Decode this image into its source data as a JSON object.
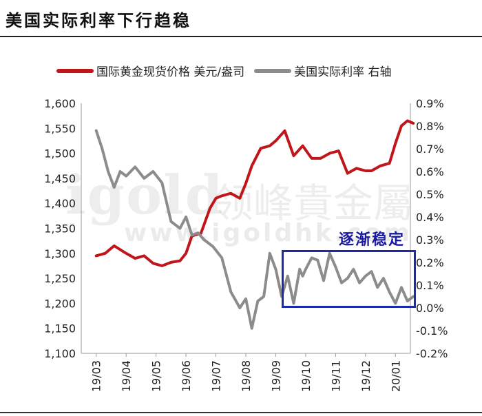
{
  "page": {
    "title": "美国实际利率下行趋稳"
  },
  "watermark": {
    "brand": "igold",
    "brand_cn": "领峰貴金屬",
    "url": "www.igoldhk.com"
  },
  "annotation": {
    "text": "逐渐稳定"
  },
  "chart_data": {
    "type": "line",
    "title": "",
    "legend_position": "top",
    "grid": false,
    "x_ticks": [
      "19/03",
      "19/04",
      "19/05",
      "19/06",
      "19/07",
      "19/08",
      "19/09",
      "19/10",
      "19/11",
      "19/12",
      "20/01"
    ],
    "y_left": {
      "ylim": [
        1100,
        1600
      ],
      "ticks": [
        "1,100",
        "1,150",
        "1,200",
        "1,250",
        "1,300",
        "1,350",
        "1,400",
        "1,450",
        "1,500",
        "1,550",
        "1,600"
      ]
    },
    "y_right": {
      "ylim": [
        -0.2,
        0.9
      ],
      "ticks": [
        "-0.2%",
        "-0.1%",
        "0.0%",
        "0.1%",
        "0.2%",
        "0.3%",
        "0.4%",
        "0.5%",
        "0.6%",
        "0.7%",
        "0.8%",
        "0.9%"
      ]
    },
    "series": [
      {
        "name": "国际黄金现货价格 美元/盎司",
        "axis": "left",
        "color": "#c0161b",
        "x": [
          0.0,
          0.3,
          0.6,
          1.0,
          1.3,
          1.6,
          1.9,
          2.2,
          2.5,
          2.8,
          3.0,
          3.2,
          3.5,
          3.8,
          4.0,
          4.2,
          4.5,
          4.8,
          5.0,
          5.2,
          5.5,
          5.8,
          6.0,
          6.3,
          6.6,
          6.9,
          7.2,
          7.5,
          7.8,
          8.1,
          8.4,
          8.7,
          9.0,
          9.2,
          9.5,
          9.8,
          10.0,
          10.2,
          10.4,
          10.6
        ],
        "y": [
          1295,
          1300,
          1315,
          1300,
          1290,
          1295,
          1280,
          1275,
          1282,
          1285,
          1300,
          1335,
          1340,
          1390,
          1410,
          1415,
          1420,
          1410,
          1440,
          1475,
          1510,
          1515,
          1525,
          1545,
          1495,
          1515,
          1490,
          1490,
          1500,
          1505,
          1460,
          1470,
          1465,
          1465,
          1475,
          1480,
          1520,
          1555,
          1565,
          1560
        ]
      },
      {
        "name": "美国实际利率 右轴",
        "axis": "right",
        "color": "#8c8c8c",
        "x": [
          0.0,
          0.2,
          0.4,
          0.6,
          0.8,
          1.0,
          1.3,
          1.6,
          1.9,
          2.2,
          2.5,
          2.8,
          3.0,
          3.2,
          3.4,
          3.6,
          3.9,
          4.2,
          4.5,
          4.8,
          5.0,
          5.2,
          5.4,
          5.6,
          5.8,
          6.0,
          6.2,
          6.4,
          6.6,
          6.8,
          6.9,
          7.0,
          7.2,
          7.4,
          7.6,
          7.8,
          8.0,
          8.2,
          8.4,
          8.6,
          8.8,
          9.0,
          9.2,
          9.4,
          9.6,
          9.8,
          10.0,
          10.2,
          10.4,
          10.6
        ],
        "y": [
          0.78,
          0.7,
          0.6,
          0.53,
          0.6,
          0.58,
          0.62,
          0.57,
          0.6,
          0.55,
          0.38,
          0.35,
          0.4,
          0.32,
          0.33,
          0.3,
          0.27,
          0.22,
          0.07,
          0.0,
          0.04,
          -0.09,
          0.03,
          0.05,
          0.24,
          0.17,
          0.05,
          0.14,
          0.02,
          0.17,
          0.14,
          0.17,
          0.22,
          0.21,
          0.12,
          0.24,
          0.18,
          0.11,
          0.13,
          0.17,
          0.11,
          0.14,
          0.16,
          0.09,
          0.13,
          0.07,
          0.02,
          0.09,
          0.03,
          0.05
        ]
      }
    ]
  }
}
